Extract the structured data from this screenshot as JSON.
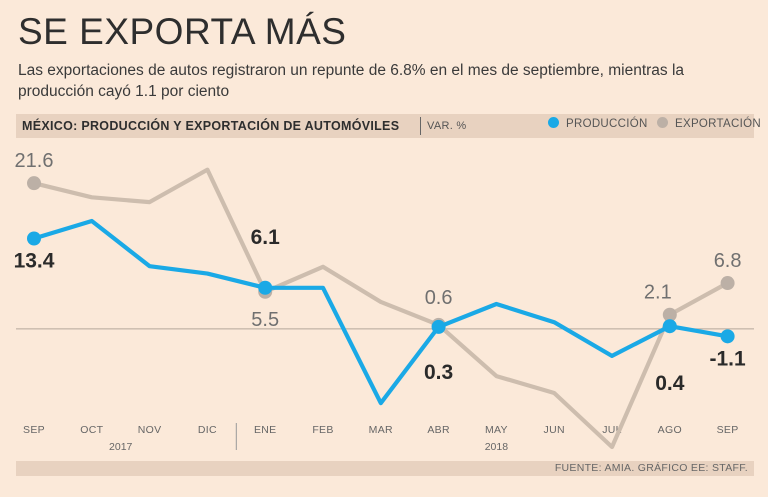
{
  "title": "SE EXPORTA MÁS",
  "subtitle": "Las exportaciones de autos registraron un repunte de 6.8% en el mes de septiembre, mientras la producción cayó 1.1 por ciento",
  "band": {
    "chart_title": "MÉXICO: PRODUCCIÓN Y EXPORTACIÓN DE AUTOMÓVILES",
    "unit": "VAR. %"
  },
  "legend": {
    "production": "PRODUCCIÓN",
    "export": "EXPORTACIÓN"
  },
  "colors": {
    "production": "#1aa9e6",
    "export": "#cdbdae",
    "export_marker": "#bcb0a6"
  },
  "source": "FUENTE: AMIA. GRÁFICO EE: STAFF.",
  "chart_data": {
    "type": "line",
    "title": "MÉXICO: PRODUCCIÓN Y EXPORTACIÓN DE AUTOMÓVILES",
    "ylabel": "VAR. %",
    "categories": [
      "SEP",
      "OCT",
      "NOV",
      "DIC",
      "ENE",
      "FEB",
      "MAR",
      "ABR",
      "MAY",
      "JUN",
      "JUL",
      "AGO",
      "SEP"
    ],
    "year_labels": [
      {
        "label": "2017",
        "index": 1.5
      },
      {
        "label": "2018",
        "index": 8
      }
    ],
    "ylim": [
      -13.5,
      28
    ],
    "series": [
      {
        "name": "PRODUCCIÓN",
        "values": [
          13.4,
          16,
          9.3,
          8.2,
          6.1,
          6.1,
          -11,
          0.3,
          3.7,
          1,
          -4,
          0.4,
          -1.1
        ]
      },
      {
        "name": "EXPORTACIÓN",
        "values": [
          21.6,
          19.5,
          18.8,
          23.6,
          5.5,
          9.2,
          4,
          0.6,
          -7,
          -9.5,
          -17.5,
          2.1,
          6.8
        ]
      }
    ],
    "annotations": [
      {
        "series": "PRODUCCIÓN",
        "index": 0,
        "text": "13.4"
      },
      {
        "series": "PRODUCCIÓN",
        "index": 4,
        "text": "6.1"
      },
      {
        "series": "PRODUCCIÓN",
        "index": 7,
        "text": "0.3"
      },
      {
        "series": "PRODUCCIÓN",
        "index": 11,
        "text": "0.4"
      },
      {
        "series": "PRODUCCIÓN",
        "index": 12,
        "text": "-1.1"
      },
      {
        "series": "EXPORTACIÓN",
        "index": 0,
        "text": "21.6"
      },
      {
        "series": "EXPORTACIÓN",
        "index": 4,
        "text": "5.5"
      },
      {
        "series": "EXPORTACIÓN",
        "index": 7,
        "text": "0.6"
      },
      {
        "series": "EXPORTACIÓN",
        "index": 11,
        "text": "2.1"
      },
      {
        "series": "EXPORTACIÓN",
        "index": 12,
        "text": "6.8"
      }
    ]
  }
}
